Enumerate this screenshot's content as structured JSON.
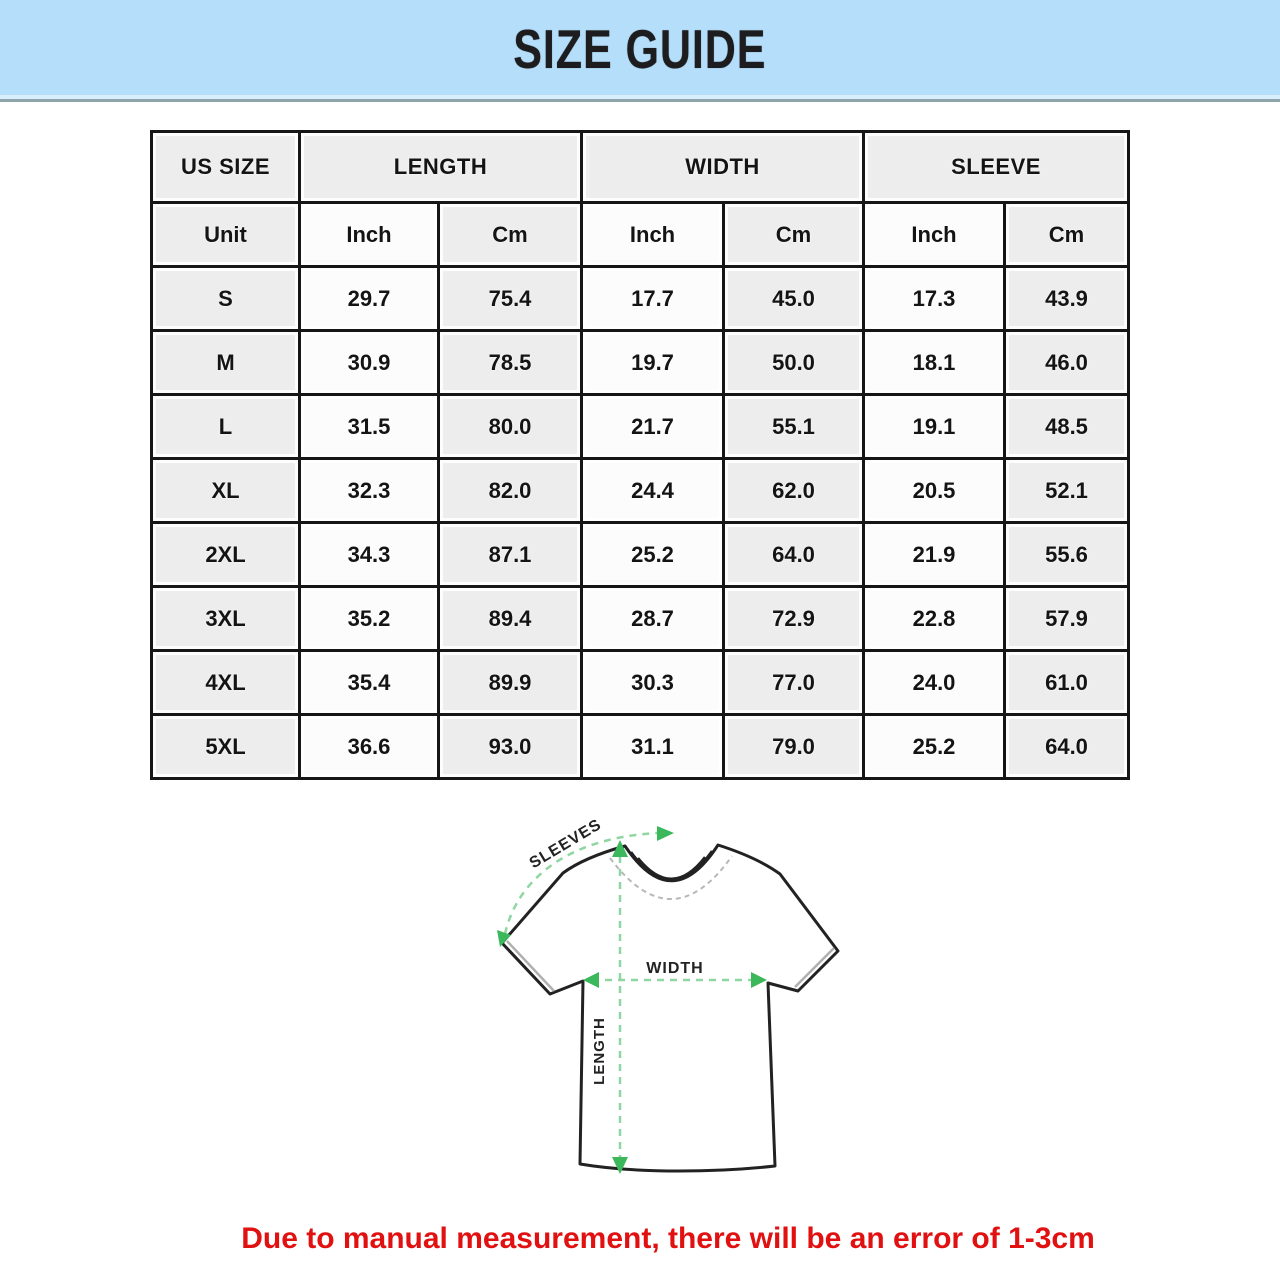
{
  "banner": {
    "title": "SIZE GUIDE",
    "bg_color": "#b5defa",
    "text_color": "#1d1d1f"
  },
  "table": {
    "columns": [
      "US SIZE",
      "LENGTH",
      "WIDTH",
      "SLEEVE"
    ],
    "unit_row": {
      "label": "Unit",
      "units": [
        "Inch",
        "Cm",
        "Inch",
        "Cm",
        "Inch",
        "Cm"
      ]
    },
    "rows": [
      {
        "size": "S",
        "values": [
          "29.7",
          "75.4",
          "17.7",
          "45.0",
          "17.3",
          "43.9"
        ]
      },
      {
        "size": "M",
        "values": [
          "30.9",
          "78.5",
          "19.7",
          "50.0",
          "18.1",
          "46.0"
        ]
      },
      {
        "size": "L",
        "values": [
          "31.5",
          "80.0",
          "21.7",
          "55.1",
          "19.1",
          "48.5"
        ]
      },
      {
        "size": "XL",
        "values": [
          "32.3",
          "82.0",
          "24.4",
          "62.0",
          "20.5",
          "52.1"
        ]
      },
      {
        "size": "2XL",
        "values": [
          "34.3",
          "87.1",
          "25.2",
          "64.0",
          "21.9",
          "55.6"
        ]
      },
      {
        "size": "3XL",
        "values": [
          "35.2",
          "89.4",
          "28.7",
          "72.9",
          "22.8",
          "57.9"
        ]
      },
      {
        "size": "4XL",
        "values": [
          "35.4",
          "89.9",
          "30.3",
          "77.0",
          "24.0",
          "61.0"
        ]
      },
      {
        "size": "5XL",
        "values": [
          "36.6",
          "93.0",
          "31.1",
          "79.0",
          "25.2",
          "64.0"
        ]
      }
    ]
  },
  "diagram": {
    "sleeves_label": "SLEEVES",
    "width_label": "WIDTH",
    "length_label": "LENGTH",
    "dash_color": "#8fd6a2",
    "arrowhead_color": "#3cb85c",
    "outline_color": "#222222"
  },
  "footnote": {
    "text": "Due to manual measurement, there will be an error of 1-3cm",
    "color": "#e11111"
  }
}
